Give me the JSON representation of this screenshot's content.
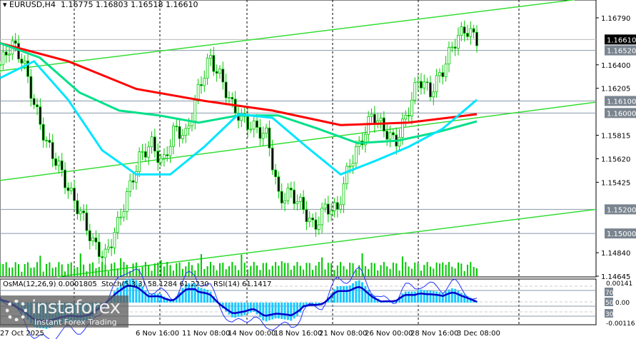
{
  "header": {
    "symbol": "EURUSD,H4",
    "open": "1.16775",
    "high": "1.16803",
    "low": "1.16518",
    "close": "1.16610"
  },
  "indicators": {
    "osma": "OsMA(12,26,9) 0.0001805",
    "stoch": "Stoch(5,3,3) 58.1284 61.2230",
    "rsi": "RSI(14) 61.1417"
  },
  "logo": {
    "name": "instaforex",
    "tagline": "Instant Forex Trading"
  },
  "colors": {
    "bull": "#00ff00",
    "bear": "#00ff00",
    "ma_red": "#ff0000",
    "ma_green": "#00e08a",
    "ma_cyan": "#00e5ff",
    "trend": "#33dd33",
    "hist": "#1ec8ff",
    "rsi": "#0000cc"
  },
  "chart_data": {
    "type": "candlestick",
    "ylim": [
      1.14645,
      1.1679
    ],
    "price_ticks": [
      "1.16790",
      "1.16400",
      "1.16205",
      "1.15815",
      "1.15620",
      "1.15425",
      "1.14840",
      "1.14645"
    ],
    "level_labels": [
      "1.16520",
      "1.16100",
      "1.16000",
      "1.15200",
      "1.15000"
    ],
    "current_price": "1.16610",
    "time_labels": [
      "27 Oct 2025",
      "6 Nov 16:00",
      "11 Nov 08:00",
      "14 Nov 00:00",
      "18 Nov 16:00",
      "21 Nov 08:00",
      "26 Nov 00:00",
      "28 Nov 16:00",
      "3 Dec 08:00"
    ],
    "close_path": [
      1.164,
      1.1658,
      1.1643,
      1.1605,
      1.1575,
      1.1557,
      1.1534,
      1.1516,
      1.1492,
      1.148,
      1.1504,
      1.1534,
      1.1563,
      1.1575,
      1.1557,
      1.1587,
      1.1581,
      1.1617,
      1.1646,
      1.1629,
      1.1605,
      1.1593,
      1.1587,
      1.1581,
      1.1528,
      1.1534,
      1.1522,
      1.1504,
      1.1522,
      1.1519,
      1.1557,
      1.1575,
      1.1599,
      1.1587,
      1.1575,
      1.1599,
      1.1629,
      1.1617,
      1.1634,
      1.1658,
      1.167,
      1.1661
    ],
    "ma_red": [
      1.1658,
      1.1643,
      1.162,
      1.161,
      1.1602,
      1.159,
      1.1592,
      1.1599
    ],
    "ma_green": [
      1.1658,
      1.1646,
      1.1617,
      1.1602,
      1.1598,
      1.1592,
      1.1598,
      1.1598,
      1.1587,
      1.1575,
      1.1577,
      1.1584,
      1.1593
    ],
    "ma_cyan": [
      1.1629,
      1.1643,
      1.1611,
      1.1569,
      1.1549,
      1.1549,
      1.1572,
      1.1599,
      1.1596,
      1.1572,
      1.1549,
      1.156,
      1.1572,
      1.1587,
      1.1611
    ],
    "trendlines": [
      [
        1.1635,
        1.1694
      ],
      [
        1.1544,
        1.1609
      ],
      [
        1.1464,
        1.152
      ]
    ],
    "osc_scale": [
      "0.00141",
      "0.00",
      "-0.00116"
    ],
    "rsi_levels": [
      "70",
      "50",
      "30"
    ]
  }
}
